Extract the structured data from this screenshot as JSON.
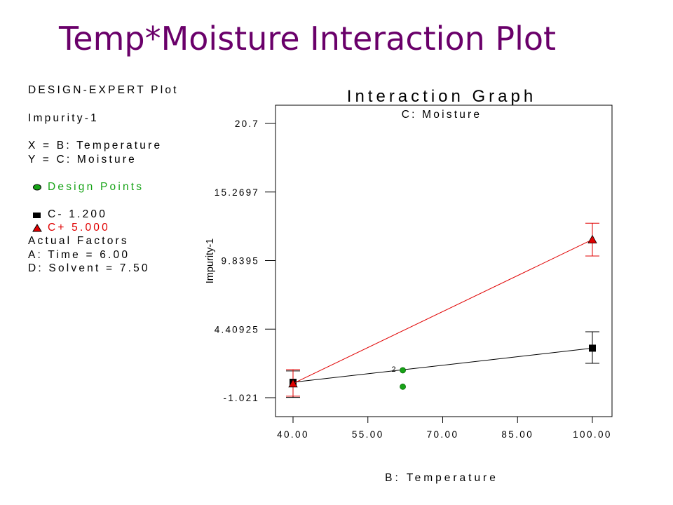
{
  "slide": {
    "title": "Temp*Moisture Interaction Plot"
  },
  "info_panel": {
    "plot_label": "DESIGN-EXPERT Plot",
    "response": "Impurity-1",
    "x_label": "X = B: Temperature",
    "y_label": "Y = C: Moisture",
    "design_points": "Design Points",
    "legend_low": "C- 1.200",
    "legend_high": "C+ 5.000",
    "actual_factors_heading": "Actual Factors",
    "factor_a": "A: Time = 6.00",
    "factor_d": "D: Solvent = 7.50"
  },
  "colors": {
    "title": "#6a006a",
    "series_low": "#000000",
    "series_high": "#e00000",
    "design_points": "#16a316"
  },
  "chart_data": {
    "type": "line",
    "title": "Interaction Graph",
    "subtitle": "C: Moisture",
    "xlabel": "B: Temperature",
    "ylabel": "Impurity-1",
    "xlim": [
      40,
      100
    ],
    "ylim": [
      -1.021,
      20.7
    ],
    "x_ticks": [
      "40.00",
      "55.00",
      "70.00",
      "85.00",
      "100.00"
    ],
    "y_ticks": [
      "-1.021",
      "4.40925",
      "9.8395",
      "15.2697",
      "20.7"
    ],
    "series": [
      {
        "name": "C- 1.200",
        "marker": "square",
        "x": [
          40,
          100
        ],
        "y": [
          0.2,
          2.9
        ],
        "error_low": [
          -1.0,
          1.7
        ],
        "error_high": [
          1.1,
          4.2
        ]
      },
      {
        "name": "C+ 5.000",
        "marker": "triangle",
        "x": [
          40,
          100
        ],
        "y": [
          0.1,
          11.5
        ],
        "error_low": [
          -0.9,
          10.2
        ],
        "error_high": [
          1.2,
          12.8
        ]
      }
    ],
    "design_points": [
      {
        "x": 62,
        "y": 1.15,
        "label": "2"
      },
      {
        "x": 62,
        "y": -0.15,
        "label": ""
      }
    ],
    "grid": false
  }
}
